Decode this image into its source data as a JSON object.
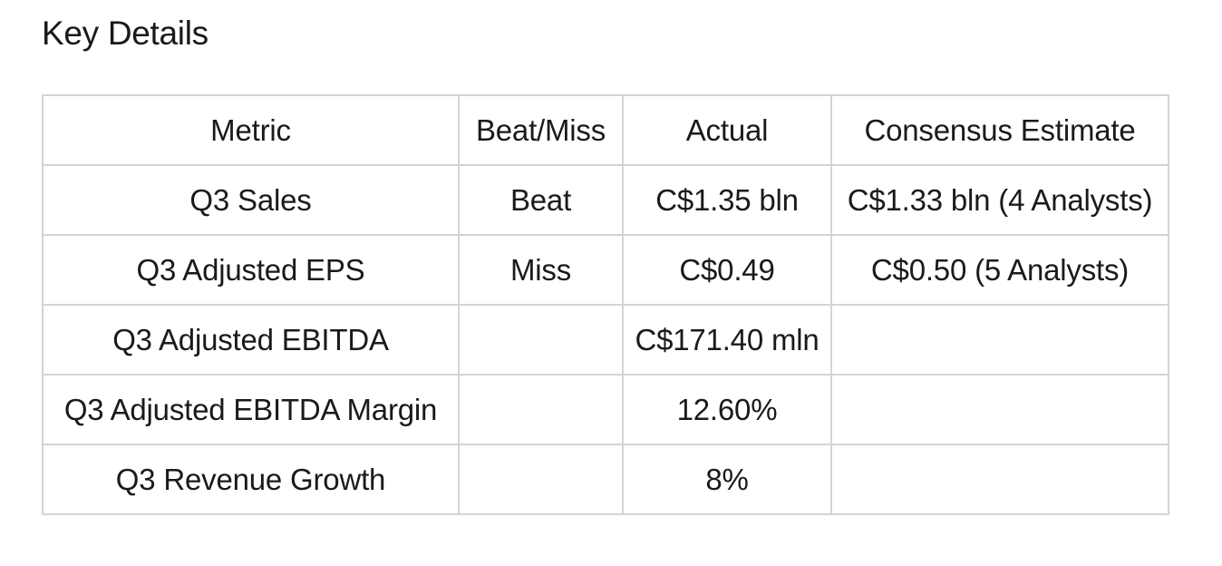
{
  "page": {
    "title": "Key Details"
  },
  "table": {
    "columns": [
      "Metric",
      "Beat/Miss",
      "Actual",
      "Consensus Estimate"
    ],
    "rows": [
      [
        "Q3 Sales",
        "Beat",
        "C$1.35 bln",
        "C$1.33 bln (4 Analysts)"
      ],
      [
        "Q3 Adjusted EPS",
        "Miss",
        "C$0.49",
        "C$0.50 (5 Analysts)"
      ],
      [
        "Q3 Adjusted EBITDA",
        "",
        "C$171.40 mln",
        ""
      ],
      [
        "Q3 Adjusted EBITDA Margin",
        "",
        "12.60%",
        ""
      ],
      [
        "Q3 Revenue Growth",
        "",
        "8%",
        ""
      ]
    ]
  },
  "colors": {
    "border": "#d4d4d4",
    "text": "#1a1a1a",
    "background": "#ffffff"
  }
}
